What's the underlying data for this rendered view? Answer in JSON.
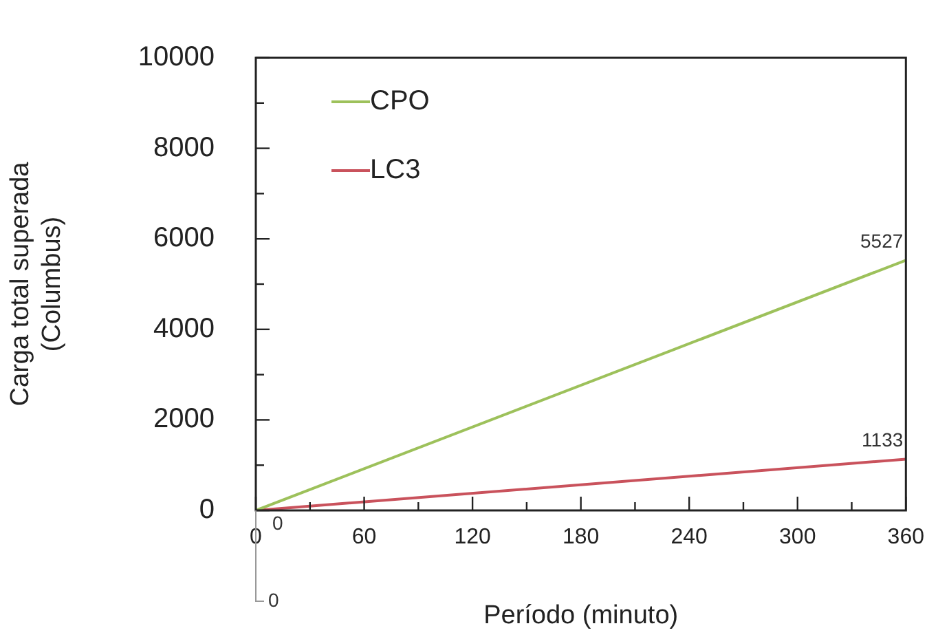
{
  "chart_data": {
    "type": "line",
    "xlabel": "Período (minuto)",
    "ylabel": "Carga total superada\n(Columbus)",
    "x": [
      0,
      360
    ],
    "series": [
      {
        "name": "CPO",
        "color": "#9dc15b",
        "values": [
          0,
          5527
        ],
        "value_labels": [
          "0",
          "5527"
        ]
      },
      {
        "name": "LC3",
        "color": "#c9525c",
        "values": [
          0,
          1133
        ],
        "value_labels": [
          null,
          "1133"
        ]
      }
    ],
    "xlim": [
      0,
      360
    ],
    "xticks": [
      0,
      {
        "value": 30,
        "label": null
      },
      60,
      {
        "value": 90,
        "label": null
      },
      120,
      {
        "value": 150,
        "label": null
      },
      180,
      {
        "value": 210,
        "label": null
      },
      240,
      {
        "value": 270,
        "label": null
      },
      300,
      {
        "value": 330,
        "label": null
      },
      360
    ],
    "ylim": [
      0,
      10000
    ],
    "yticks": [
      0,
      {
        "value": 1000,
        "label": null
      },
      2000,
      {
        "value": 3000,
        "label": null
      },
      4000,
      {
        "value": 5000,
        "label": null
      },
      6000,
      {
        "value": 7000,
        "label": null
      },
      8000,
      {
        "value": 9000,
        "label": null
      },
      10000
    ],
    "annotations": [
      {
        "text": "0",
        "x": 0,
        "y": 0
      }
    ],
    "grid": false,
    "legend": "top left",
    "marker": "none",
    "line_style": "solid"
  }
}
